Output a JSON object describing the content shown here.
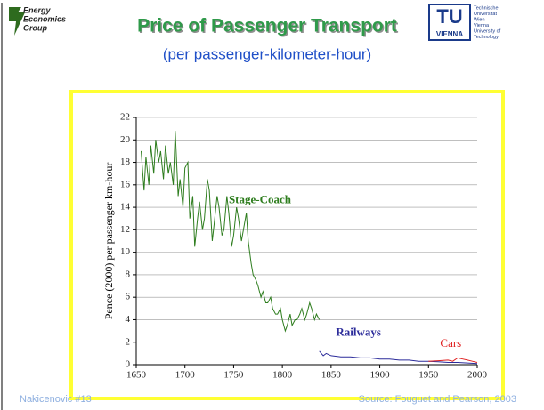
{
  "title": "Price of Passenger Transport",
  "subtitle": "(per passenger-kilometer-hour)",
  "logo_left": [
    "Energy",
    "Economics",
    "Group"
  ],
  "logo_right": {
    "mark": "TU",
    "word": "VIENNA",
    "lines": [
      "Technische",
      "Universität",
      "Wien",
      "Vienna",
      "University of",
      "Technology"
    ]
  },
  "footer_left": "Nakicenovic  #13",
  "footer_right": "Source: Fouguet and Pearson, 2003",
  "chart_data": {
    "type": "line",
    "y_label": "Pence (2000) per passenger km-hour",
    "xlim": [
      1650,
      2000
    ],
    "xticks": [
      1650,
      1700,
      1750,
      1800,
      1850,
      1900,
      1950,
      2000
    ],
    "ylim": [
      0,
      22
    ],
    "yticks": [
      0,
      2,
      4,
      6,
      8,
      10,
      12,
      14,
      16,
      18,
      20,
      22
    ],
    "grid": true,
    "series": [
      {
        "name": "Stage-Coach",
        "color": "#2e7d1e",
        "x": [
          1655,
          1658,
          1660,
          1663,
          1665,
          1668,
          1670,
          1673,
          1675,
          1678,
          1680,
          1683,
          1685,
          1688,
          1690,
          1693,
          1695,
          1698,
          1700,
          1703,
          1705,
          1708,
          1710,
          1713,
          1715,
          1718,
          1720,
          1723,
          1725,
          1728,
          1730,
          1733,
          1735,
          1738,
          1740,
          1743,
          1745,
          1748,
          1750,
          1753,
          1755,
          1758,
          1760,
          1763,
          1765,
          1768,
          1770,
          1773,
          1775,
          1778,
          1780,
          1783,
          1785,
          1788,
          1790,
          1793,
          1795,
          1798,
          1800,
          1803,
          1805,
          1808,
          1810,
          1813,
          1815,
          1818,
          1820,
          1823,
          1825,
          1828,
          1830,
          1833,
          1835,
          1838
        ],
        "values": [
          19,
          15.5,
          18.5,
          16,
          19.5,
          17,
          20,
          18,
          19,
          16.5,
          19.5,
          17,
          18,
          16,
          20.8,
          15,
          16.5,
          14,
          17.5,
          18,
          13,
          15,
          10.5,
          13,
          14.5,
          12,
          13,
          16.5,
          15.5,
          11,
          12.5,
          15,
          14,
          11.5,
          12,
          15,
          13.5,
          10.5,
          11.5,
          14,
          13,
          11,
          12,
          13.5,
          11,
          9,
          8,
          7.5,
          7,
          6,
          6.5,
          5.5,
          5.5,
          6,
          5,
          4.5,
          4.5,
          5,
          4,
          3,
          3.5,
          4.5,
          3.5,
          4,
          4,
          4.5,
          5,
          4,
          4.5,
          5.5,
          5,
          4,
          4.5,
          4
        ]
      },
      {
        "name": "Railways",
        "color": "#2b2b9a",
        "x": [
          1838,
          1842,
          1845,
          1850,
          1860,
          1870,
          1880,
          1890,
          1900,
          1910,
          1920,
          1930,
          1940,
          1950,
          1960,
          1970,
          1980,
          1990,
          2000
        ],
        "values": [
          1.2,
          0.8,
          1.0,
          0.8,
          0.7,
          0.7,
          0.6,
          0.6,
          0.5,
          0.5,
          0.4,
          0.4,
          0.3,
          0.3,
          0.25,
          0.2,
          0.2,
          0.15,
          0.1
        ]
      },
      {
        "name": "Cars",
        "color": "#e02020",
        "x": [
          1950,
          1960,
          1970,
          1975,
          1980,
          1985,
          1990,
          1995,
          2000
        ],
        "values": [
          0.3,
          0.35,
          0.4,
          0.3,
          0.6,
          0.5,
          0.4,
          0.3,
          0.2
        ]
      }
    ]
  }
}
